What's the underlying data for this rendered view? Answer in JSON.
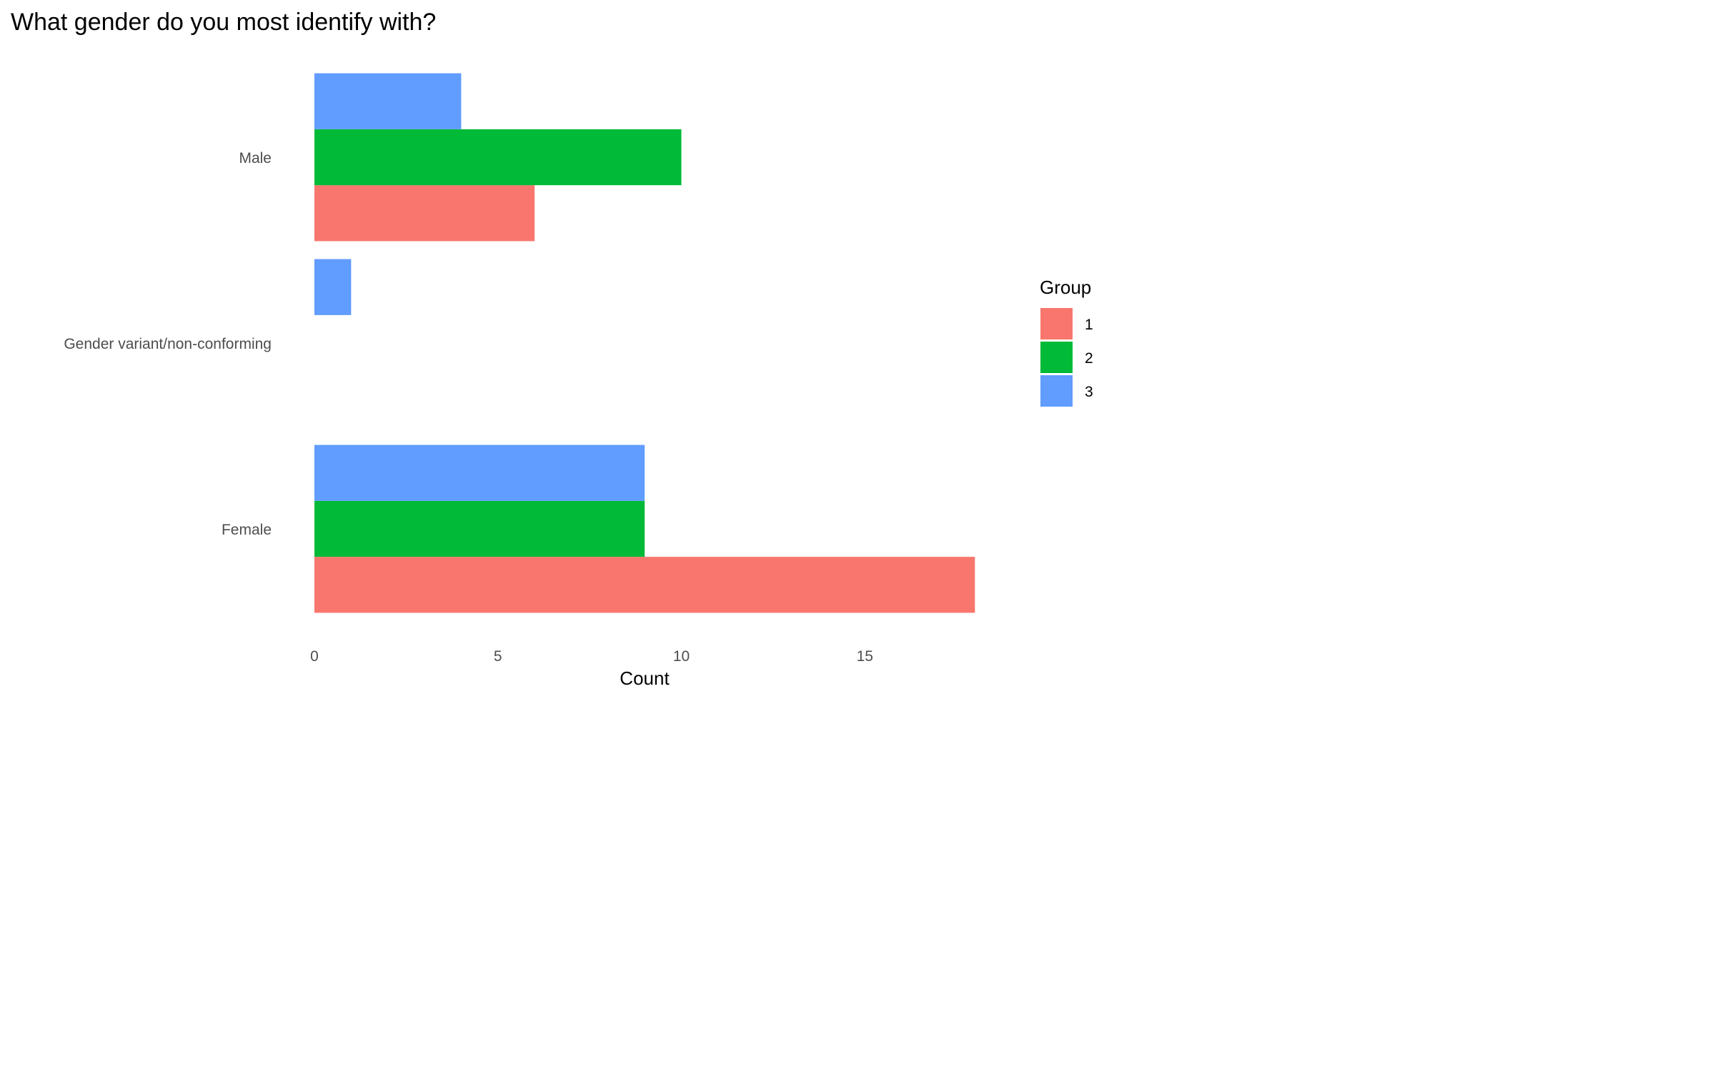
{
  "chart_data": {
    "type": "bar",
    "orientation": "horizontal",
    "title": "What gender do you most identify with?",
    "xlabel": "Count",
    "ylabel": "",
    "categories": [
      "Male",
      "Gender variant/non-conforming",
      "Female"
    ],
    "series": [
      {
        "name": "1",
        "color": "#F8766D",
        "values": [
          6,
          0,
          18
        ]
      },
      {
        "name": "2",
        "color": "#00BA38",
        "values": [
          10,
          0,
          9
        ]
      },
      {
        "name": "3",
        "color": "#619CFF",
        "values": [
          4,
          1,
          9
        ]
      }
    ],
    "x_ticks": [
      0,
      5,
      10,
      15
    ],
    "xlim": [
      0,
      18.9
    ],
    "grid": false,
    "legend": {
      "title": "Group",
      "position": "right"
    }
  }
}
